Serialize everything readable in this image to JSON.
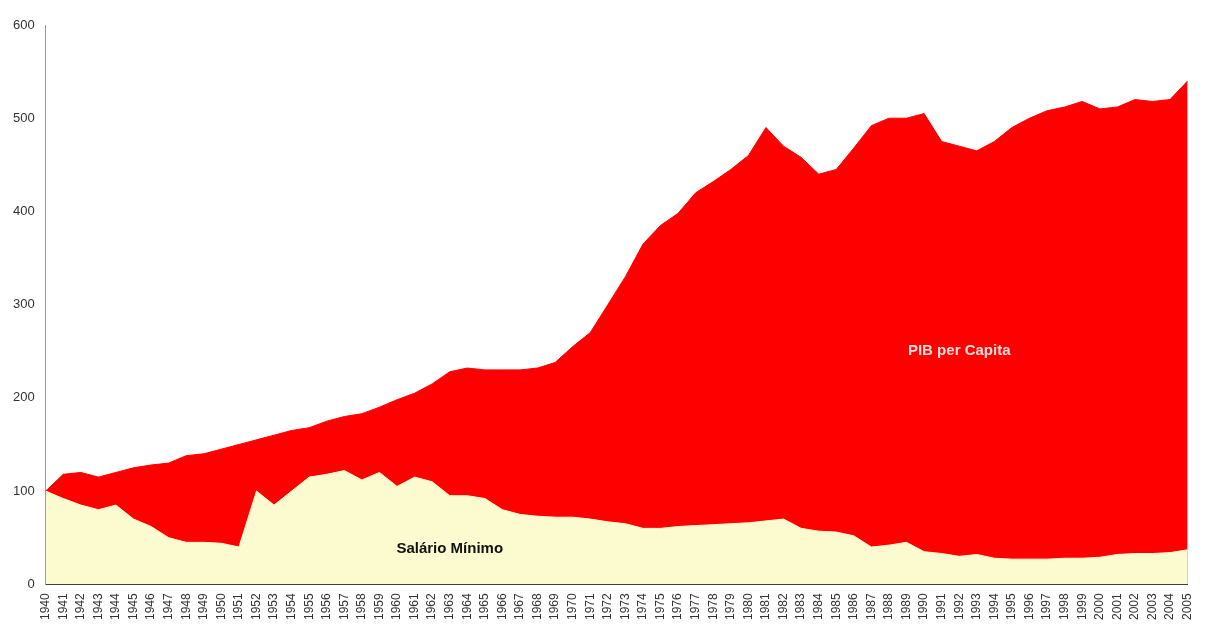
{
  "chart_data": {
    "type": "area",
    "categories": [
      "1940",
      "1941",
      "1942",
      "1943",
      "1944",
      "1945",
      "1946",
      "1947",
      "1948",
      "1949",
      "1950",
      "1951",
      "1952",
      "1953",
      "1954",
      "1955",
      "1956",
      "1957",
      "1958",
      "1959",
      "1960",
      "1961",
      "1962",
      "1963",
      "1964",
      "1965",
      "1966",
      "1967",
      "1968",
      "1969",
      "1970",
      "1971",
      "1972",
      "1973",
      "1974",
      "1975",
      "1976",
      "1977",
      "1978",
      "1979",
      "1980",
      "1981",
      "1982",
      "1983",
      "1984",
      "1985",
      "1986",
      "1987",
      "1988",
      "1989",
      "1990",
      "1991",
      "1992",
      "1993",
      "1994",
      "1995",
      "1996",
      "1997",
      "1998",
      "1999",
      "2000",
      "2001",
      "2002",
      "2003",
      "2004",
      "2005"
    ],
    "series": [
      {
        "name": "PIB per Capita",
        "color": "#ff0000",
        "values": [
          100,
          118,
          120,
          115,
          120,
          125,
          128,
          130,
          138,
          140,
          145,
          150,
          155,
          160,
          165,
          168,
          175,
          180,
          183,
          190,
          198,
          205,
          215,
          228,
          232,
          230,
          230,
          230,
          232,
          238,
          255,
          270,
          300,
          330,
          365,
          385,
          398,
          420,
          432,
          445,
          460,
          490,
          470,
          458,
          440,
          445,
          468,
          492,
          500,
          500,
          505,
          475,
          470,
          465,
          475,
          490,
          500,
          508,
          512,
          518,
          510,
          512,
          520,
          518,
          520,
          540
        ]
      },
      {
        "name": "Salário Mínimo",
        "color": "#fbfbcf",
        "values": [
          100,
          92,
          85,
          80,
          85,
          70,
          62,
          50,
          45,
          45,
          44,
          40,
          100,
          85,
          100,
          115,
          118,
          122,
          112,
          120,
          105,
          115,
          110,
          95,
          95,
          92,
          80,
          75,
          73,
          72,
          72,
          70,
          67,
          65,
          60,
          60,
          62,
          63,
          64,
          65,
          66,
          68,
          70,
          60,
          57,
          56,
          52,
          40,
          42,
          45,
          35,
          33,
          30,
          32,
          28,
          27,
          27,
          27,
          28,
          28,
          29,
          32,
          33,
          33,
          34,
          37
        ]
      }
    ],
    "ylim": [
      0,
      600
    ],
    "yticks": [
      0,
      100,
      200,
      300,
      400,
      500,
      600
    ],
    "grid": false,
    "legend": false
  }
}
